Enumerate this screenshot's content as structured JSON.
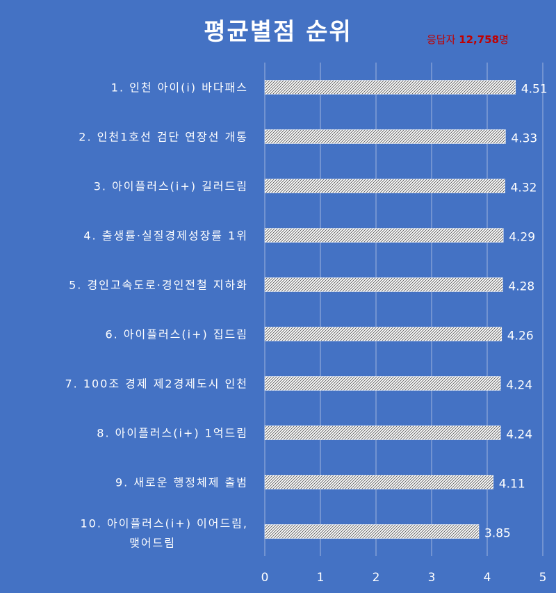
{
  "respondents": {
    "prefix": "응답자 ",
    "count": "12,758",
    "suffix": "명"
  },
  "colors": {
    "background": "#4472c4",
    "bar_pattern": "white-with-dark-diagonal-hatch",
    "respondent_text": "#c00000",
    "text": "#ffffff"
  },
  "chart_data": {
    "type": "bar",
    "orientation": "horizontal",
    "title": "평균별점 순위",
    "categories": [
      "1. 인천 아이(i) 바다패스",
      "2. 인천1호선 검단 연장선 개통",
      "3. 아이플러스(i+) 길러드림",
      "4. 출생률·실질경제성장률 1위",
      "5. 경인고속도로·경인전철 지하화",
      "6. 아이플러스(i+) 집드림",
      "7. 100조 경제 제2경제도시 인천",
      "8. 아이플러스(i+) 1억드림",
      "9. 새로운 행정체제 출범",
      "10. 아이플러스(i+) 이어드림, 맺어드림"
    ],
    "values": [
      4.51,
      4.33,
      4.32,
      4.29,
      4.28,
      4.26,
      4.24,
      4.24,
      4.11,
      3.85
    ],
    "value_labels": [
      "4.51",
      "4.33",
      "4.32",
      "4.29",
      "4.28",
      "4.26",
      "4.24",
      "4.24",
      "4.11",
      "3.85"
    ],
    "xlim": [
      0,
      5
    ],
    "xticks": [
      "0",
      "1",
      "2",
      "3",
      "4",
      "5"
    ],
    "xlabel": "",
    "ylabel": "",
    "grid": true,
    "legend": "none"
  }
}
